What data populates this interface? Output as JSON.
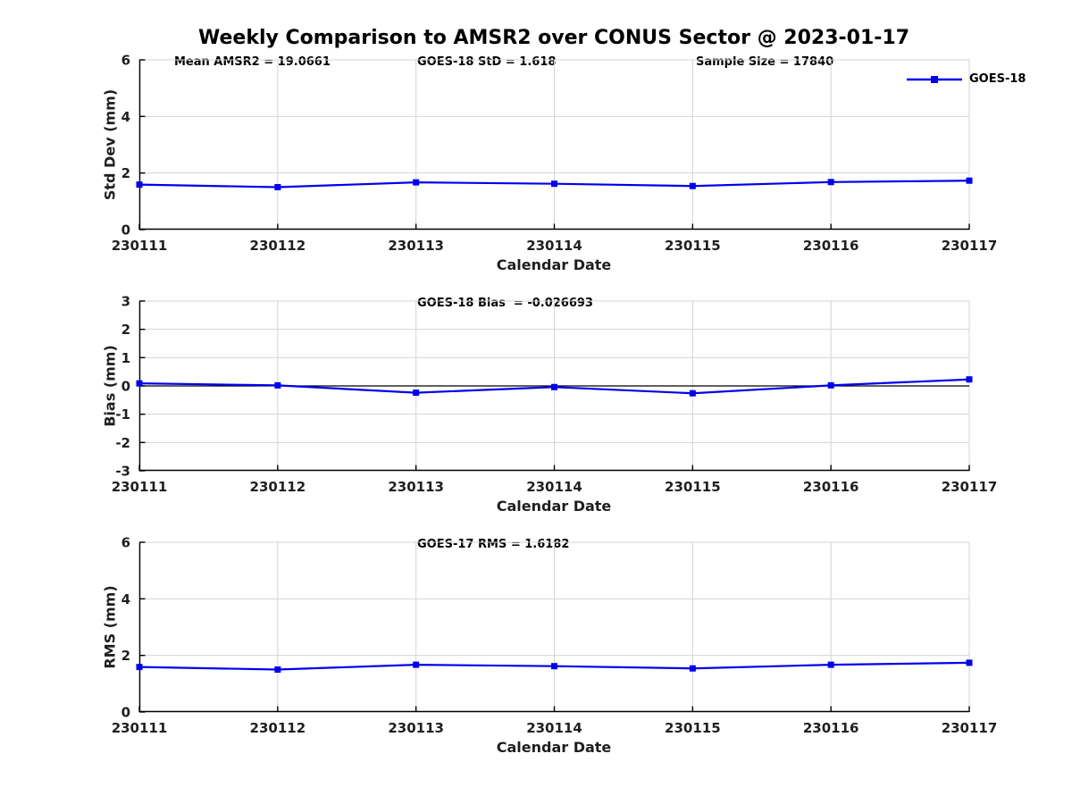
{
  "title": "Weekly Comparison to AMSR2 over CONUS Sector @ 2023-01-17",
  "legend": {
    "label": "GOES-18",
    "position": "top-right",
    "marker": "square"
  },
  "colors": {
    "line": "#0000ee",
    "grid": "#d4d4d4",
    "spine": "#000000",
    "zero_line": "#000000",
    "text": "#1f1f1f"
  },
  "chart_data": [
    {
      "type": "line",
      "ylabel": "Std Dev (mm)",
      "xlabel": "Calendar Date",
      "ylim": [
        0,
        6
      ],
      "yticks": [
        0,
        2,
        4,
        6
      ],
      "grid": true,
      "legend_position": "top-right",
      "annotations": [
        "Mean AMSR2 = 19.0661",
        "GOES-18 StD = 1.618",
        "Sample Size = 17840"
      ],
      "categories": [
        "230111",
        "230112",
        "230113",
        "230114",
        "230115",
        "230116",
        "230117"
      ],
      "series": [
        {
          "name": "GOES-18",
          "values": [
            1.59,
            1.5,
            1.67,
            1.62,
            1.54,
            1.68,
            1.73
          ]
        }
      ]
    },
    {
      "type": "line",
      "ylabel": "Bias (mm)",
      "xlabel": "Calendar Date",
      "ylim": [
        -3,
        3
      ],
      "yticks": [
        -3,
        -2,
        -1,
        0,
        1,
        2,
        3
      ],
      "grid": true,
      "zero_line": true,
      "annotations": [
        "GOES-18 Bias  = -0.026693"
      ],
      "categories": [
        "230111",
        "230112",
        "230113",
        "230114",
        "230115",
        "230116",
        "230117"
      ],
      "series": [
        {
          "name": "GOES-18",
          "values": [
            0.09,
            0.02,
            -0.24,
            -0.04,
            -0.26,
            0.02,
            0.23
          ]
        }
      ]
    },
    {
      "type": "line",
      "ylabel": "RMS (mm)",
      "xlabel": "Calendar Date",
      "ylim": [
        0,
        6
      ],
      "yticks": [
        0,
        2,
        4,
        6
      ],
      "grid": true,
      "annotations": [
        "GOES-17 RMS = 1.6182"
      ],
      "categories": [
        "230111",
        "230112",
        "230113",
        "230114",
        "230115",
        "230116",
        "230117"
      ],
      "series": [
        {
          "name": "GOES-18",
          "values": [
            1.59,
            1.5,
            1.67,
            1.62,
            1.54,
            1.67,
            1.74
          ]
        }
      ]
    }
  ]
}
